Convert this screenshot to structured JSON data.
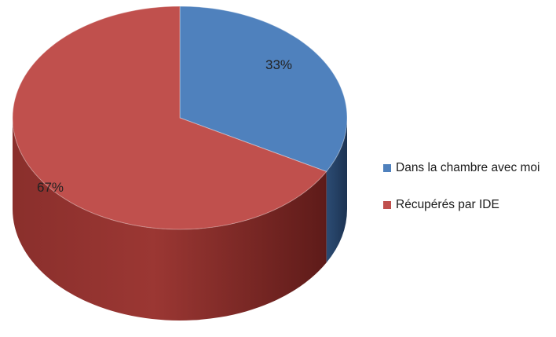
{
  "chart_data": {
    "type": "pie",
    "style": "3d",
    "title": "",
    "categories": [
      "Dans la chambre avec moi",
      "Récupérés par IDE"
    ],
    "values": [
      33,
      67
    ],
    "data_labels": [
      "33%",
      "67%"
    ],
    "colors": [
      "#4f81bd",
      "#c0504d"
    ],
    "legend_position": "right"
  }
}
